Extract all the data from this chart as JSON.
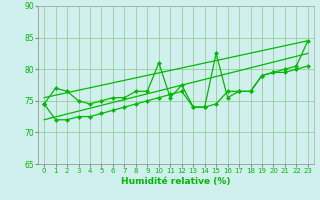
{
  "xlabel": "Humidité relative (%)",
  "bg_color": "#cff0ec",
  "line_color": "#00bb00",
  "grid_color": "#99cc99",
  "xlim": [
    -0.5,
    23.5
  ],
  "ylim": [
    65,
    90
  ],
  "yticks": [
    65,
    70,
    75,
    80,
    85,
    90
  ],
  "xticks": [
    0,
    1,
    2,
    3,
    4,
    5,
    6,
    7,
    8,
    9,
    10,
    11,
    12,
    13,
    14,
    15,
    16,
    17,
    18,
    19,
    20,
    21,
    22,
    23
  ],
  "line_upper_trend_x": [
    0,
    23
  ],
  "line_upper_trend_y": [
    75.5,
    84.5
  ],
  "line_lower_trend_x": [
    0,
    23
  ],
  "line_lower_trend_y": [
    72.0,
    82.5
  ],
  "line_zigzag1_x": [
    0,
    1,
    2,
    3,
    4,
    5,
    6,
    7,
    8,
    9,
    10,
    11,
    12,
    13,
    14,
    15,
    16,
    17,
    18,
    19,
    20,
    21,
    22,
    23
  ],
  "line_zigzag1_y": [
    74.5,
    77.0,
    76.5,
    75.0,
    74.5,
    75.0,
    75.5,
    75.5,
    76.5,
    76.5,
    81.0,
    75.5,
    77.5,
    74.0,
    74.0,
    82.5,
    75.5,
    76.5,
    76.5,
    79.0,
    79.5,
    80.0,
    80.5,
    84.5
  ],
  "line_zigzag2_x": [
    0,
    1,
    2,
    3,
    4,
    5,
    6,
    7,
    8,
    9,
    10,
    11,
    12,
    13,
    14,
    15,
    16,
    17,
    18,
    19,
    20,
    21,
    22,
    23
  ],
  "line_zigzag2_y": [
    74.5,
    72.0,
    72.0,
    72.5,
    72.5,
    73.0,
    73.5,
    74.0,
    74.5,
    75.0,
    75.5,
    76.0,
    76.5,
    74.0,
    74.0,
    74.5,
    76.5,
    76.5,
    76.5,
    79.0,
    79.5,
    79.5,
    80.0,
    80.5
  ]
}
